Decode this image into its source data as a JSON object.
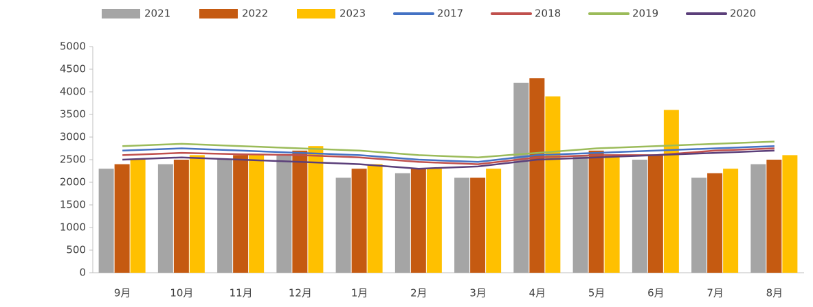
{
  "chart_data": {
    "type": "bar",
    "categories": [
      "9月",
      "10月",
      "11月",
      "12月",
      "1月",
      "2月",
      "3月",
      "4月",
      "5月",
      "6月",
      "7月",
      "8月"
    ],
    "ylim": [
      0,
      5000
    ],
    "yticks": [
      0,
      500,
      1000,
      1500,
      2000,
      2500,
      3000,
      3500,
      4000,
      4500,
      5000
    ],
    "series": [
      {
        "name": "2021",
        "type": "bar",
        "color": "#a5a5a5",
        "values": [
          2300,
          2400,
          2500,
          2600,
          2100,
          2200,
          2100,
          4200,
          2600,
          2500,
          2100,
          2400
        ]
      },
      {
        "name": "2022",
        "type": "bar",
        "color": "#c55a11",
        "values": [
          2400,
          2500,
          2600,
          2700,
          2300,
          2300,
          2100,
          4300,
          2700,
          2600,
          2200,
          2500
        ]
      },
      {
        "name": "2023",
        "type": "bar",
        "color": "#ffc000",
        "values": [
          2500,
          2600,
          2600,
          2800,
          2400,
          2300,
          2300,
          3900,
          2600,
          3600,
          2300,
          2600
        ]
      },
      {
        "name": "2017",
        "type": "line",
        "color": "#4472c4",
        "values": [
          2700,
          2750,
          2700,
          2650,
          2600,
          2500,
          2450,
          2600,
          2650,
          2700,
          2750,
          2800
        ]
      },
      {
        "name": "2018",
        "type": "line",
        "color": "#c0504d",
        "values": [
          2600,
          2650,
          2620,
          2600,
          2550,
          2450,
          2400,
          2550,
          2600,
          2600,
          2700,
          2750
        ]
      },
      {
        "name": "2019",
        "type": "line",
        "color": "#9bbb59",
        "values": [
          2800,
          2850,
          2800,
          2750,
          2700,
          2600,
          2550,
          2650,
          2750,
          2800,
          2850,
          2900
        ]
      },
      {
        "name": "2020",
        "type": "line",
        "color": "#5b3f7a",
        "values": [
          2500,
          2550,
          2500,
          2450,
          2400,
          2300,
          2350,
          2500,
          2550,
          2600,
          2650,
          2700
        ]
      }
    ]
  }
}
